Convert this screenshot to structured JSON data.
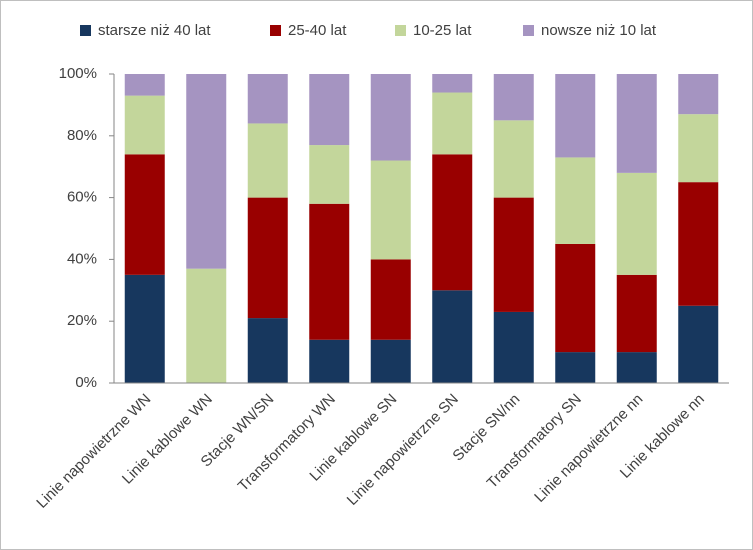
{
  "chart_data": {
    "type": "stacked-bar",
    "categories": [
      "Linie napowietrzne WN",
      "Linie kablowe WN",
      "Stacje  WN/SN",
      "Transformatory WN",
      "Linie kablowe SN",
      "Linie napowietrzne SN",
      "Stacje SN/nn",
      "Transformatory SN",
      "Linie napowietrzne nn",
      "Linie kablowe nn"
    ],
    "series": [
      {
        "name": "starsze niż 40 lat",
        "color": "#17375e",
        "values": [
          35,
          0,
          21,
          14,
          14,
          30,
          23,
          10,
          10,
          25
        ]
      },
      {
        "name": "25-40 lat",
        "color": "#990000",
        "values": [
          39,
          0,
          39,
          44,
          26,
          44,
          37,
          35,
          25,
          40
        ]
      },
      {
        "name": "10-25 lat",
        "color": "#c3d69b",
        "values": [
          19,
          37,
          24,
          19,
          32,
          20,
          25,
          28,
          33,
          22
        ]
      },
      {
        "name": "nowsze niż 10 lat",
        "color": "#a594c1",
        "values": [
          7,
          63,
          16,
          23,
          28,
          6,
          15,
          27,
          32,
          13
        ]
      }
    ],
    "ylim": [
      0,
      100
    ],
    "yticks": [
      {
        "value": 0,
        "label": "0%"
      },
      {
        "value": 20,
        "label": "20%"
      },
      {
        "value": 40,
        "label": "40%"
      },
      {
        "value": 60,
        "label": "60%"
      },
      {
        "value": 80,
        "label": "80%"
      },
      {
        "value": 100,
        "label": "100%"
      }
    ],
    "legend": "top"
  }
}
